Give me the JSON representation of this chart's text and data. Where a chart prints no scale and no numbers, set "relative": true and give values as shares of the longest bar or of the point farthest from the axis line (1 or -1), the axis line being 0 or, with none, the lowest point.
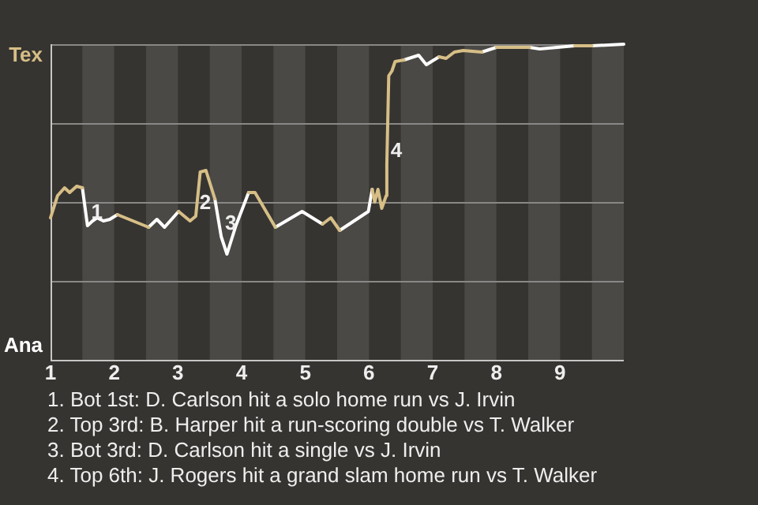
{
  "chart_data": {
    "type": "line",
    "relative": true,
    "xlim": [
      1,
      10
    ],
    "xticks": [
      1,
      2,
      3,
      4,
      5,
      6,
      7,
      8,
      9
    ],
    "tick_labels": "x",
    "grid": "y",
    "legend": false,
    "marker": "none",
    "series": [
      {
        "color": "#d6be86",
        "x": [
          1.0,
          1.11,
          1.22,
          1.3,
          1.41,
          1.5,
          1.7,
          2.05,
          2.54,
          2.6,
          3.01,
          3.19,
          3.28,
          3.35,
          3.44,
          3.58,
          3.7,
          4.11,
          4.21,
          4.53,
          4.7,
          5.27,
          5.4,
          5.54,
          5.8,
          6.05,
          6.09,
          6.14,
          6.2,
          6.27,
          6.28,
          6.31,
          6.36,
          6.41,
          6.55,
          6.7,
          7.1,
          7.21,
          7.34,
          7.48,
          7.77,
          7.9,
          8.0,
          8.22,
          8.52,
          8.8,
          9.23,
          9.5
        ],
        "values": [
          0.45,
          0.52,
          0.545,
          0.53,
          0.55,
          0.545,
          null,
          0.46,
          0.42,
          null,
          0.47,
          0.44,
          0.455,
          0.595,
          0.6,
          0.51,
          null,
          0.53,
          0.53,
          0.42,
          null,
          0.43,
          0.45,
          0.41,
          null,
          0.54,
          0.5,
          0.54,
          0.48,
          0.52,
          0.62,
          0.9,
          0.915,
          0.945,
          0.95,
          null,
          0.96,
          0.955,
          0.975,
          0.98,
          0.975,
          null,
          0.99,
          0.99,
          0.99,
          null,
          0.995,
          0.995
        ]
      },
      {
        "color": "#ffffff",
        "x": [
          1.5,
          1.58,
          1.66,
          1.73,
          1.83,
          1.93,
          2.05,
          2.3,
          2.54,
          2.67,
          2.79,
          3.01,
          3.3,
          3.58,
          3.68,
          3.77,
          3.91,
          4.11,
          4.3,
          4.53,
          4.95,
          5.27,
          5.35,
          5.54,
          5.99,
          6.05,
          6.4,
          6.55,
          6.78,
          6.9,
          7.1,
          7.5,
          7.77,
          8.0,
          8.1,
          8.52,
          8.68,
          8.96,
          9.23,
          9.4,
          9.5,
          10
        ],
        "values": [
          0.545,
          0.425,
          0.44,
          0.45,
          0.44,
          0.445,
          0.46,
          null,
          0.42,
          0.445,
          0.42,
          0.47,
          null,
          0.51,
          0.39,
          0.335,
          0.425,
          0.53,
          null,
          0.42,
          0.47,
          0.43,
          null,
          0.41,
          0.47,
          0.54,
          null,
          0.95,
          0.965,
          0.935,
          0.96,
          null,
          0.975,
          0.99,
          null,
          0.99,
          0.985,
          0.99,
          0.995,
          null,
          0.995,
          1
        ]
      }
    ],
    "bands": [
      {
        "axis": "x",
        "from": 1.5,
        "to": 2,
        "color": "#4b4946"
      },
      {
        "axis": "x",
        "from": 2.5,
        "to": 3,
        "color": "#4b4946"
      },
      {
        "axis": "x",
        "from": 3.5,
        "to": 4,
        "color": "#4b4946"
      },
      {
        "axis": "x",
        "from": 4.5,
        "to": 5,
        "color": "#4b4946"
      },
      {
        "axis": "x",
        "from": 5.5,
        "to": 6,
        "color": "#4b4946"
      },
      {
        "axis": "x",
        "from": 6.5,
        "to": 7,
        "color": "#4b4946"
      },
      {
        "axis": "x",
        "from": 7.5,
        "to": 8,
        "color": "#4b4946"
      },
      {
        "axis": "x",
        "from": 8.5,
        "to": 9,
        "color": "#4b4946"
      },
      {
        "axis": "x",
        "from": 9.5,
        "to": 10,
        "color": "#4b4946"
      }
    ],
    "annotations": [
      "Tex",
      "Ana",
      {
        "text": "1",
        "x": 1.58,
        "y": 0.425
      },
      {
        "text": "2",
        "x": 3.28,
        "y": 0.455
      },
      {
        "text": "3",
        "x": 3.68,
        "y": 0.39
      },
      {
        "text": "4",
        "x": 6.28,
        "y": 0.62
      },
      "1. Bot 1st: D. Carlson hit a solo home run vs J. Irvin",
      "2. Top 3rd: B. Harper hit a run-scoring double vs T. Walker",
      "3. Bot 3rd: D. Carlson hit a single vs J. Irvin",
      "4. Top 6th: J. Rogers hit a grand slam home run vs T. Walker"
    ]
  }
}
